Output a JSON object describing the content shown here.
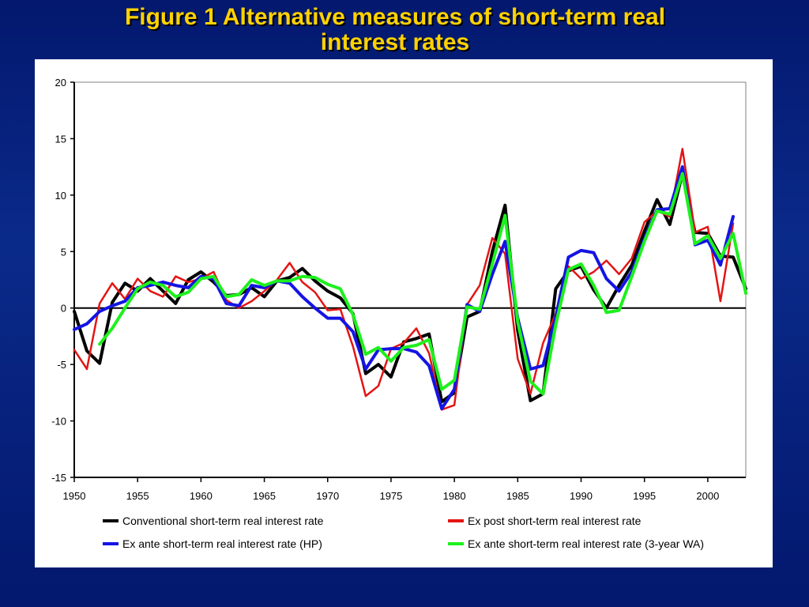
{
  "title_line1": "Figure 1  Alternative measures of short-term real",
  "title_line2": "interest rates",
  "chart_data": {
    "type": "line",
    "xlim": [
      1950,
      2003
    ],
    "ylim": [
      -15,
      20
    ],
    "yticks": [
      20,
      15,
      10,
      5,
      0,
      -5,
      -10,
      -15
    ],
    "xticks": [
      1950,
      1955,
      1960,
      1965,
      1970,
      1975,
      1980,
      1985,
      1990,
      1995,
      2000
    ],
    "legend_position": "bottom",
    "zero_line": true,
    "series": [
      {
        "name": "Conventional short-term real interest rate",
        "color": "#000000",
        "x": [
          1950,
          1951,
          1952,
          1953,
          1954,
          1955,
          1956,
          1957,
          1958,
          1959,
          1960,
          1961,
          1962,
          1963,
          1964,
          1965,
          1966,
          1967,
          1968,
          1969,
          1970,
          1971,
          1972,
          1973,
          1974,
          1975,
          1976,
          1977,
          1978,
          1979,
          1980,
          1981,
          1982,
          1983,
          1984,
          1985,
          1986,
          1987,
          1988,
          1989,
          1990,
          1991,
          1992,
          1993,
          1994,
          1995,
          1996,
          1997,
          1998,
          1999,
          2000,
          2001,
          2002,
          2003
        ],
        "y": [
          -0.3,
          -3.8,
          -4.9,
          0.5,
          2.2,
          1.5,
          2.6,
          1.5,
          0.4,
          2.5,
          3.2,
          2.3,
          1.1,
          1.2,
          1.8,
          1.0,
          2.4,
          2.7,
          3.5,
          2.4,
          1.5,
          0.9,
          -0.5,
          -5.8,
          -5.0,
          -6.1,
          -3.0,
          -2.7,
          -2.3,
          -8.3,
          -7.5,
          -0.8,
          -0.3,
          5.0,
          9.1,
          -2.0,
          -8.2,
          -7.6,
          1.7,
          3.3,
          3.7,
          1.6,
          0.0,
          2.0,
          3.8,
          6.8,
          9.6,
          7.4,
          11.9,
          6.7,
          6.6,
          4.6,
          4.5,
          1.7
        ]
      },
      {
        "name": "Ex post short-term real interest rate",
        "color": "#e41414",
        "x": [
          1950,
          1951,
          1952,
          1953,
          1954,
          1955,
          1956,
          1957,
          1958,
          1959,
          1960,
          1961,
          1962,
          1963,
          1964,
          1965,
          1966,
          1967,
          1968,
          1969,
          1970,
          1971,
          1972,
          1973,
          1974,
          1975,
          1976,
          1977,
          1978,
          1979,
          1980,
          1981,
          1982,
          1983,
          1984,
          1985,
          1986,
          1987,
          1988,
          1989,
          1990,
          1991,
          1992,
          1993,
          1994,
          1995,
          1996,
          1997,
          1998,
          1999,
          2000,
          2001,
          2002
        ],
        "y": [
          -3.7,
          -5.4,
          0.4,
          2.2,
          0.8,
          2.6,
          1.5,
          1.0,
          2.8,
          2.3,
          2.6,
          3.2,
          0.7,
          0.0,
          0.6,
          1.5,
          2.5,
          4.0,
          2.3,
          1.4,
          -0.2,
          -0.1,
          -3.4,
          -7.8,
          -6.9,
          -3.6,
          -3.1,
          -1.8,
          -4.0,
          -9.0,
          -8.6,
          0.3,
          2.0,
          6.2,
          4.8,
          -4.5,
          -7.6,
          -3.1,
          -0.5,
          3.7,
          2.6,
          3.2,
          4.2,
          3.0,
          4.4,
          7.6,
          8.6,
          8.1,
          14.1,
          6.7,
          7.2,
          0.6,
          7.5
        ]
      },
      {
        "name": "Ex ante short-term real interest rate (HP)",
        "color": "#1414e4",
        "x": [
          1950,
          1951,
          1952,
          1953,
          1954,
          1955,
          1956,
          1957,
          1958,
          1959,
          1960,
          1961,
          1962,
          1963,
          1964,
          1965,
          1966,
          1967,
          1968,
          1969,
          1970,
          1971,
          1972,
          1973,
          1974,
          1975,
          1976,
          1977,
          1978,
          1979,
          1980,
          1981,
          1982,
          1983,
          1984,
          1985,
          1986,
          1987,
          1988,
          1989,
          1990,
          1991,
          1992,
          1993,
          1994,
          1995,
          1996,
          1997,
          1998,
          1999,
          2000,
          2001,
          2002
        ],
        "y": [
          -1.9,
          -1.4,
          -0.3,
          0.2,
          0.6,
          1.8,
          2.0,
          2.3,
          2.0,
          1.8,
          2.8,
          2.6,
          0.4,
          0.2,
          2.0,
          1.8,
          2.4,
          2.2,
          1.0,
          0.0,
          -0.9,
          -0.9,
          -2.1,
          -5.4,
          -3.7,
          -3.6,
          -3.6,
          -3.9,
          -5.1,
          -8.9,
          -7.2,
          0.3,
          -0.3,
          3.0,
          5.9,
          -0.9,
          -5.4,
          -5.1,
          -0.8,
          4.5,
          5.1,
          4.9,
          2.6,
          1.5,
          3.2,
          6.1,
          8.7,
          8.8,
          12.5,
          5.6,
          6.0,
          3.8,
          8.1
        ]
      },
      {
        "name": "Ex ante short-term real interest rate (3-year WA)",
        "color": "#1ef01e",
        "x": [
          1952,
          1953,
          1954,
          1955,
          1956,
          1957,
          1958,
          1959,
          1960,
          1961,
          1962,
          1963,
          1964,
          1965,
          1966,
          1967,
          1968,
          1969,
          1970,
          1971,
          1972,
          1973,
          1974,
          1975,
          1976,
          1977,
          1978,
          1979,
          1980,
          1981,
          1982,
          1983,
          1984,
          1985,
          1986,
          1987,
          1988,
          1989,
          1990,
          1991,
          1992,
          1993,
          1994,
          1995,
          1996,
          1997,
          1998,
          1999,
          2000,
          2001,
          2002,
          2003
        ],
        "y": [
          -3.2,
          -1.8,
          0.0,
          1.7,
          2.3,
          2.0,
          1.0,
          1.4,
          2.6,
          2.8,
          1.0,
          1.2,
          2.5,
          2.0,
          2.4,
          2.4,
          2.8,
          2.7,
          2.1,
          1.7,
          -0.6,
          -4.1,
          -3.5,
          -4.7,
          -3.5,
          -3.3,
          -2.8,
          -7.2,
          -6.4,
          0.1,
          -0.1,
          3.9,
          8.2,
          -1.2,
          -6.5,
          -7.6,
          -1.5,
          3.4,
          3.9,
          2.0,
          -0.4,
          -0.2,
          2.8,
          5.9,
          8.6,
          8.3,
          11.9,
          5.7,
          6.4,
          4.4,
          6.6,
          1.3
        ]
      }
    ]
  }
}
